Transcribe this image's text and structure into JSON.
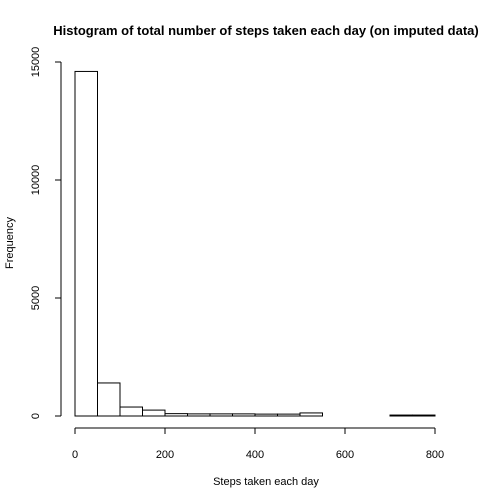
{
  "chart_data": {
    "type": "bar",
    "title": "Histogram of total number of steps taken each day (on imputed data)",
    "xlabel": "Steps taken each day",
    "ylabel": "Frequency",
    "bin_edges": [
      0,
      50,
      100,
      150,
      200,
      250,
      300,
      350,
      400,
      450,
      500,
      550,
      600,
      650,
      700,
      750,
      800
    ],
    "values": [
      14600,
      1400,
      380,
      250,
      100,
      90,
      90,
      90,
      80,
      80,
      130,
      0,
      0,
      0,
      40,
      40
    ],
    "xlim": [
      0,
      800
    ],
    "ylim": [
      0,
      15000
    ],
    "xticks": [
      0,
      200,
      400,
      600,
      800
    ],
    "xtick_labels": [
      "0",
      "200",
      "400",
      "600",
      "800"
    ],
    "yticks": [
      0,
      5000,
      10000,
      15000
    ],
    "ytick_labels": [
      "0",
      "5000",
      "10000",
      "15000"
    ],
    "grid": false,
    "colors": {
      "bar_fill": "#ffffff",
      "bar_stroke": "#000000",
      "axis": "#000000",
      "background": "#ffffff"
    }
  }
}
